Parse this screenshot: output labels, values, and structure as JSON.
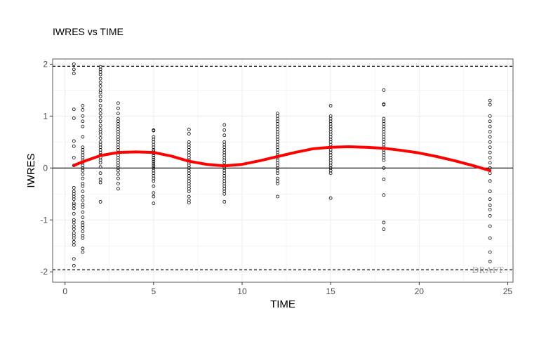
{
  "chart_data": {
    "type": "scatter",
    "title": "IWRES vs TIME",
    "xlabel": "TIME",
    "ylabel": "IWRES",
    "xlim": [
      -0.7,
      25.3
    ],
    "ylim": [
      -2.2,
      2.1
    ],
    "x_ticks": [
      0,
      5,
      10,
      15,
      20,
      25
    ],
    "y_ticks": [
      -2,
      -1,
      0,
      1,
      2
    ],
    "grid": true,
    "legend": "none",
    "reference_lines": {
      "zero": 0,
      "dashed": [
        -1.96,
        1.96
      ]
    },
    "watermark": "DRAFT",
    "colors": {
      "points": "#000000",
      "smooth": "#ff0000",
      "grid": "#ebebeb",
      "panel_border": "#333333"
    },
    "series": [
      {
        "kind": "points",
        "groups": [
          {
            "x": 0.5,
            "y": [
              2.0,
              1.9,
              1.82,
              1.13,
              0.96,
              0.52,
              0.42,
              0.2,
              0.05,
              -0.38,
              -0.45,
              -0.5,
              -0.55,
              -0.6,
              -0.68,
              -0.72,
              -0.78,
              -0.88,
              -1.0,
              -1.05,
              -1.12,
              -1.18,
              -1.25,
              -1.3,
              -1.35,
              -1.42,
              -1.48,
              -1.75,
              -1.88
            ]
          },
          {
            "x": 1.0,
            "y": [
              1.2,
              1.12,
              1.0,
              0.9,
              0.8,
              0.6,
              0.4,
              0.35,
              0.3,
              0.25,
              0.2,
              0.15,
              0.1,
              0.05,
              0.0,
              -0.05,
              -0.12,
              -0.2,
              -0.3,
              -0.35,
              -0.45,
              -0.55,
              -0.62,
              -0.7,
              -0.75,
              -0.85,
              -0.95,
              -1.05,
              -1.1,
              -1.15,
              -1.22,
              -1.3,
              -1.35,
              -1.55,
              -1.62
            ]
          },
          {
            "x": 2.0,
            "y": [
              1.95,
              1.9,
              1.85,
              1.8,
              1.72,
              1.65,
              1.58,
              1.5,
              1.45,
              1.38,
              1.3,
              1.2,
              1.12,
              1.05,
              0.98,
              0.9,
              0.82,
              0.75,
              0.7,
              0.65,
              0.58,
              0.5,
              0.45,
              0.4,
              0.35,
              0.3,
              0.25,
              0.2,
              0.15,
              0.1,
              0.02,
              -0.1,
              -0.22,
              -0.28,
              -0.65
            ]
          },
          {
            "x": 3.0,
            "y": [
              1.25,
              1.15,
              1.05,
              0.95,
              0.9,
              0.85,
              0.8,
              0.75,
              0.7,
              0.65,
              0.6,
              0.55,
              0.5,
              0.45,
              0.4,
              0.35,
              0.3,
              0.25,
              0.2,
              0.15,
              0.1,
              0.05,
              0.0,
              -0.05,
              -0.12,
              -0.2,
              -0.3,
              -0.4
            ]
          },
          {
            "x": 5.0,
            "y": [
              0.73,
              0.72,
              0.6,
              0.55,
              0.5,
              0.45,
              0.4,
              0.35,
              0.32,
              0.28,
              0.24,
              0.2,
              0.16,
              0.12,
              0.08,
              0.04,
              0.0,
              -0.05,
              -0.1,
              -0.15,
              -0.2,
              -0.25,
              -0.35,
              -0.48,
              -0.55,
              -0.68
            ]
          },
          {
            "x": 7.0,
            "y": [
              0.74,
              0.66,
              0.5,
              0.45,
              0.4,
              0.35,
              0.3,
              0.25,
              0.2,
              0.15,
              0.1,
              0.05,
              0.0,
              -0.05,
              -0.1,
              -0.15,
              -0.2,
              -0.25,
              -0.3,
              -0.35,
              -0.4,
              -0.45,
              -0.55,
              -0.62,
              -0.67
            ]
          },
          {
            "x": 9.0,
            "y": [
              0.83,
              0.73,
              0.63,
              0.5,
              0.45,
              0.4,
              0.35,
              0.3,
              0.25,
              0.2,
              0.15,
              0.1,
              0.05,
              0.0,
              -0.05,
              -0.1,
              -0.15,
              -0.2,
              -0.25,
              -0.3,
              -0.35,
              -0.4,
              -0.45,
              -0.5,
              -0.65
            ]
          },
          {
            "x": 12.0,
            "y": [
              1.05,
              1.0,
              0.95,
              0.9,
              0.85,
              0.8,
              0.75,
              0.7,
              0.65,
              0.6,
              0.55,
              0.5,
              0.45,
              0.4,
              0.35,
              0.3,
              0.25,
              0.2,
              0.15,
              0.1,
              0.05,
              0.0,
              -0.05,
              -0.1,
              -0.2,
              -0.25,
              -0.3,
              -0.55
            ]
          },
          {
            "x": 15.0,
            "y": [
              1.2,
              1.0,
              0.95,
              0.9,
              0.85,
              0.8,
              0.75,
              0.7,
              0.65,
              0.6,
              0.55,
              0.5,
              0.45,
              0.4,
              0.35,
              0.3,
              0.25,
              0.2,
              0.15,
              0.1,
              0.05,
              0.0,
              -0.05,
              -0.1,
              -0.58
            ]
          },
          {
            "x": 18.0,
            "y": [
              1.5,
              1.23,
              1.22,
              0.95,
              0.9,
              0.85,
              0.8,
              0.75,
              0.7,
              0.65,
              0.6,
              0.55,
              0.5,
              0.45,
              0.4,
              0.35,
              0.3,
              0.25,
              0.2,
              0.15,
              0.0,
              -0.22,
              -0.52,
              -1.05,
              -1.18
            ]
          },
          {
            "x": 24.0,
            "y": [
              1.3,
              1.22,
              1.0,
              0.9,
              0.8,
              0.7,
              0.6,
              0.5,
              0.4,
              0.3,
              0.2,
              0.1,
              0.0,
              -0.1,
              -0.25,
              -0.45,
              -0.6,
              -0.72,
              -0.8,
              -0.92,
              -1.12,
              -1.35,
              -1.62,
              -1.8
            ]
          }
        ]
      },
      {
        "kind": "smooth",
        "x": [
          0.5,
          1,
          2,
          3,
          4,
          5,
          6,
          7,
          8,
          9,
          10,
          11,
          12,
          13,
          14,
          15,
          16,
          17,
          18,
          19,
          20,
          21,
          22,
          23,
          24
        ],
        "y": [
          0.05,
          0.12,
          0.24,
          0.3,
          0.31,
          0.3,
          0.23,
          0.13,
          0.07,
          0.04,
          0.07,
          0.14,
          0.22,
          0.3,
          0.37,
          0.4,
          0.41,
          0.4,
          0.38,
          0.34,
          0.29,
          0.22,
          0.14,
          0.05,
          -0.05
        ]
      }
    ]
  }
}
